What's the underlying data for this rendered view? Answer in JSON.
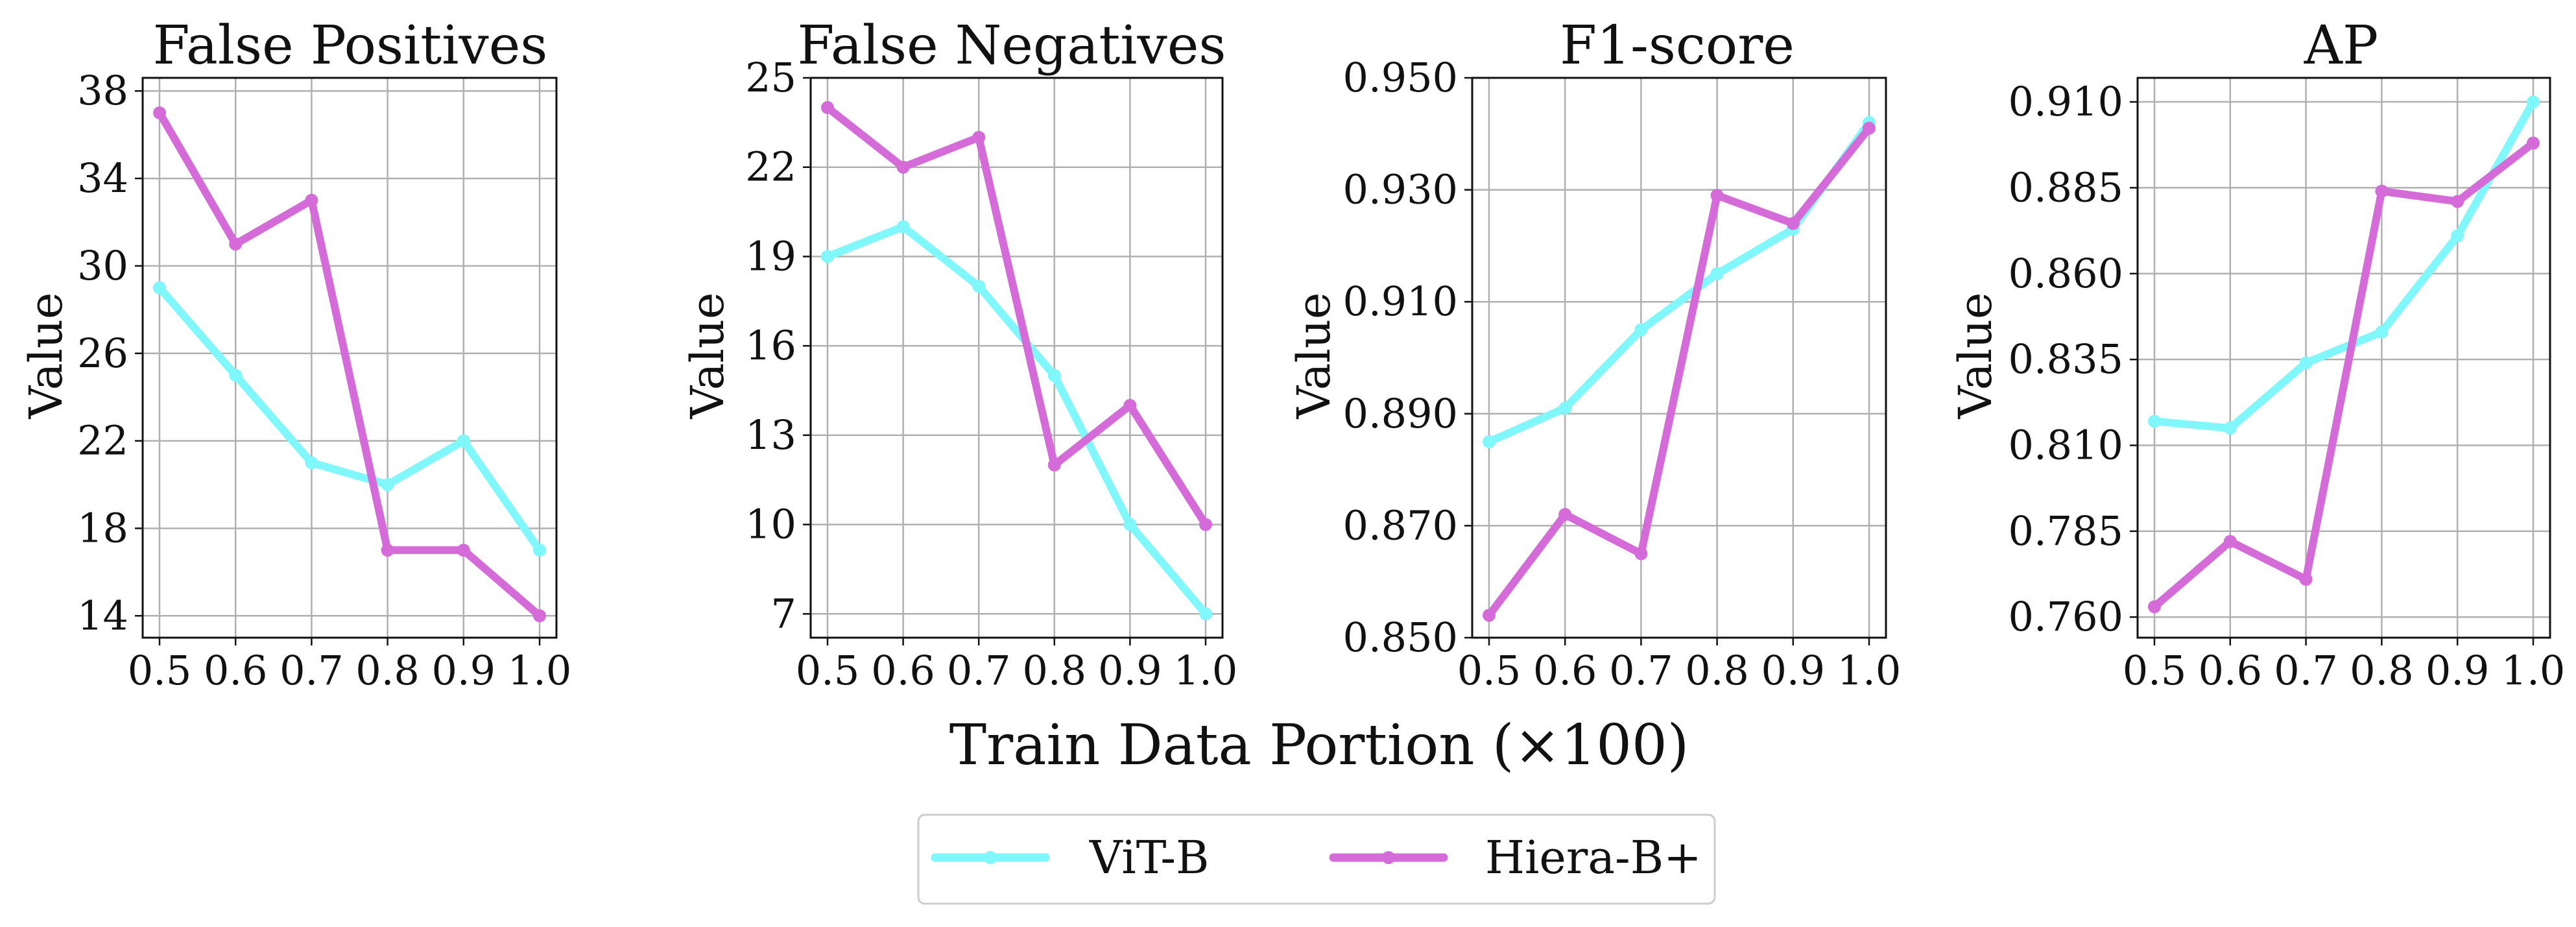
{
  "chart_data": {
    "type": "line",
    "xlabel": "Train Data Portion (×100)",
    "legend": {
      "placement": "bottom-center",
      "entries": [
        "ViT-B",
        "Hiera-B+"
      ]
    },
    "series_colors": {
      "ViT-B": "#7ff7fb",
      "Hiera-B+": "#d56ad9"
    },
    "grid": true,
    "panels": [
      {
        "title": "False Positives",
        "ylabel": "Value",
        "x": [
          0.5,
          0.6,
          0.7,
          0.8,
          0.9,
          1.0
        ],
        "x_ticks": [
          "0.5",
          "0.6",
          "0.7",
          "0.8",
          "0.9",
          "1.0"
        ],
        "ylim": [
          13,
          38.6
        ],
        "y_ticks": [
          14,
          18,
          22,
          26,
          30,
          34,
          38
        ],
        "y_tick_labels": [
          "14",
          "18",
          "22",
          "26",
          "30",
          "34",
          "38"
        ],
        "series": [
          {
            "name": "ViT-B",
            "values": [
              29,
              25,
              21,
              20,
              22,
              17
            ]
          },
          {
            "name": "Hiera-B+",
            "values": [
              37,
              31,
              33,
              17,
              17,
              14
            ]
          }
        ]
      },
      {
        "title": "False Negatives",
        "ylabel": "Value",
        "x": [
          0.5,
          0.6,
          0.7,
          0.8,
          0.9,
          1.0
        ],
        "x_ticks": [
          "0.5",
          "0.6",
          "0.7",
          "0.8",
          "0.9",
          "1.0"
        ],
        "ylim": [
          6.2,
          25
        ],
        "y_ticks": [
          7,
          10,
          13,
          16,
          19,
          22,
          25
        ],
        "y_tick_labels": [
          "7",
          "10",
          "13",
          "16",
          "19",
          "22",
          "25"
        ],
        "series": [
          {
            "name": "ViT-B",
            "values": [
              19,
              20,
              18,
              15,
              10,
              7
            ]
          },
          {
            "name": "Hiera-B+",
            "values": [
              24,
              22,
              23,
              12,
              14,
              10
            ]
          }
        ]
      },
      {
        "title": "F1-score",
        "ylabel": "Value",
        "x": [
          0.5,
          0.6,
          0.7,
          0.8,
          0.9,
          1.0
        ],
        "x_ticks": [
          "0.5",
          "0.6",
          "0.7",
          "0.8",
          "0.9",
          "1.0"
        ],
        "ylim": [
          0.85,
          0.95
        ],
        "y_ticks": [
          0.85,
          0.87,
          0.89,
          0.91,
          0.93,
          0.95
        ],
        "y_tick_labels": [
          "0.850",
          "0.870",
          "0.890",
          "0.910",
          "0.930",
          "0.950"
        ],
        "series": [
          {
            "name": "ViT-B",
            "values": [
              0.885,
              0.891,
              0.905,
              0.915,
              0.923,
              0.942
            ]
          },
          {
            "name": "Hiera-B+",
            "values": [
              0.854,
              0.872,
              0.865,
              0.929,
              0.924,
              0.941
            ]
          }
        ]
      },
      {
        "title": "AP",
        "ylabel": "Value",
        "x": [
          0.5,
          0.6,
          0.7,
          0.8,
          0.9,
          1.0
        ],
        "x_ticks": [
          "0.5",
          "0.6",
          "0.7",
          "0.8",
          "0.9",
          "1.0"
        ],
        "ylim": [
          0.754,
          0.917
        ],
        "y_ticks": [
          0.76,
          0.785,
          0.81,
          0.835,
          0.86,
          0.885,
          0.91
        ],
        "y_tick_labels": [
          "0.760",
          "0.785",
          "0.810",
          "0.835",
          "0.860",
          "0.885",
          "0.910"
        ],
        "series": [
          {
            "name": "ViT-B",
            "values": [
              0.817,
              0.815,
              0.834,
              0.843,
              0.871,
              0.91
            ]
          },
          {
            "name": "Hiera-B+",
            "values": [
              0.763,
              0.782,
              0.771,
              0.884,
              0.881,
              0.898
            ]
          }
        ]
      }
    ]
  }
}
